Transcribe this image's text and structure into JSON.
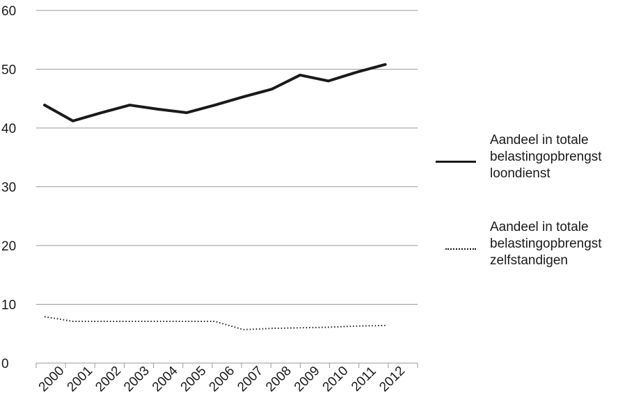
{
  "chart_data": {
    "type": "line",
    "x": [
      "2000",
      "2001",
      "2002",
      "2003",
      "2004",
      "2005",
      "2006",
      "2007",
      "2008",
      "2009",
      "2010",
      "2011",
      "2012"
    ],
    "ylim": [
      0,
      60
    ],
    "yticks": [
      0,
      10,
      20,
      30,
      40,
      50,
      60
    ],
    "grid": true,
    "legend_position": "right",
    "series": [
      {
        "name": "Aandeel in totale belastingopbrengst loondienst",
        "style": "solid",
        "color": "#1a1a1a",
        "values": [
          43.9,
          41.2,
          42.6,
          43.9,
          43.2,
          42.6,
          43.9,
          45.3,
          46.6,
          49.0,
          48.0,
          49.5,
          50.8
        ]
      },
      {
        "name": "Aandeel in totale belastingopbrengst zelfstandigen",
        "style": "dotted",
        "color": "#1a1a1a",
        "values": [
          7.9,
          7.1,
          7.1,
          7.1,
          7.1,
          7.1,
          7.1,
          5.7,
          5.9,
          6.0,
          6.1,
          6.3,
          6.4
        ]
      }
    ]
  },
  "legend": {
    "items": [
      {
        "lines": [
          "Aandeel in totale",
          "belastingopbrengst",
          "loondienst"
        ]
      },
      {
        "lines": [
          "Aandeel in totale",
          "belastingopbrengst",
          "zelfstandigen"
        ]
      }
    ]
  }
}
